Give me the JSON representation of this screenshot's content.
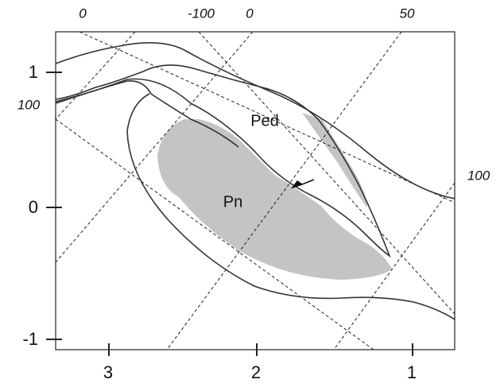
{
  "x_axis": {
    "ticks": [
      "3",
      "2",
      "1"
    ]
  },
  "y_axis": {
    "ticks": [
      "1",
      "0",
      "-1"
    ]
  },
  "oblique_labels": {
    "top": [
      "0",
      "-100",
      "0",
      "50"
    ],
    "left": "100",
    "right": "100"
  },
  "regions": [
    "Ped",
    "Pn"
  ]
}
